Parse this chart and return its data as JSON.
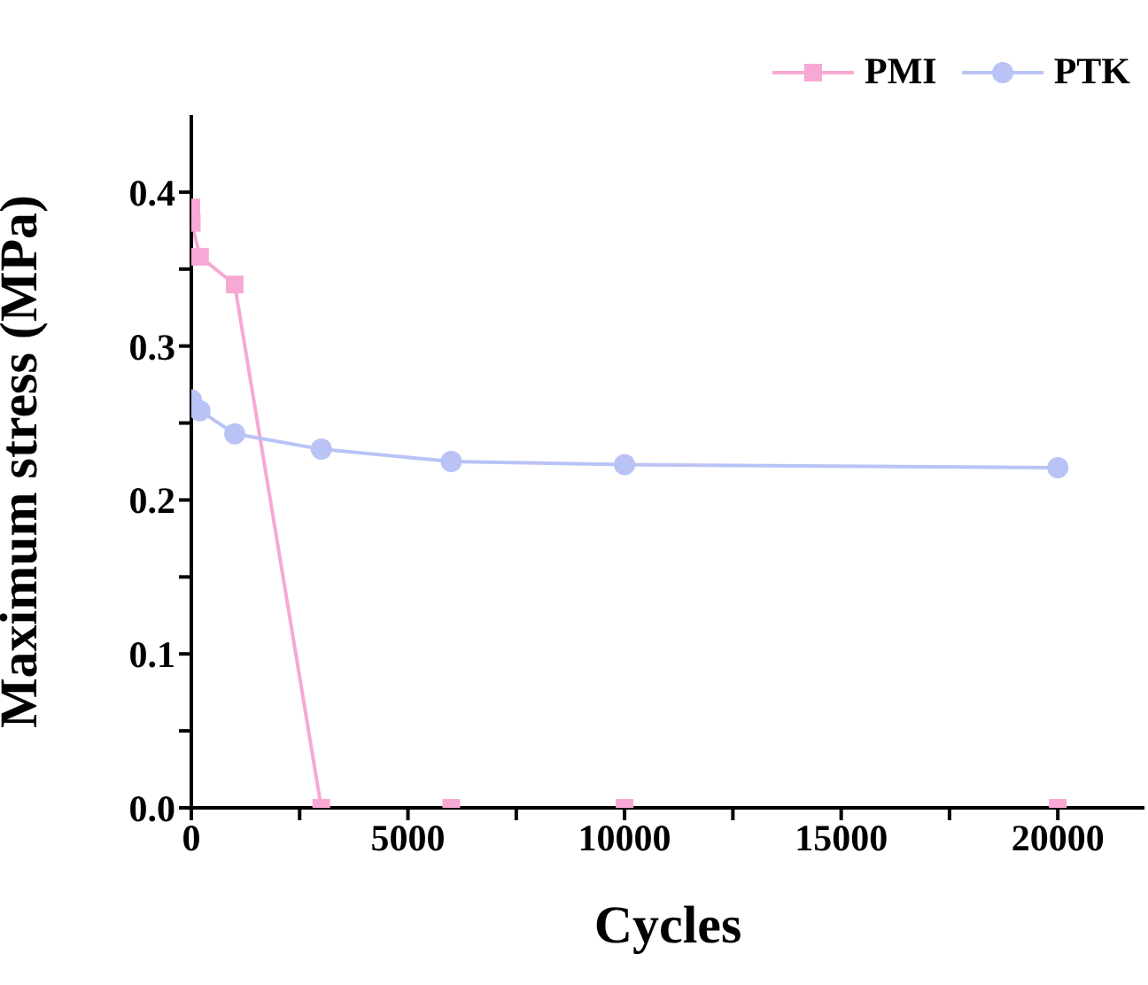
{
  "chart_data": {
    "type": "line",
    "xlabel": "Cycles",
    "ylabel": "Maximum stress (MPa)",
    "xlim": [
      0,
      22000
    ],
    "xticks": [
      0,
      {
        "value": 2500,
        "label": null
      },
      5000,
      {
        "value": 7500,
        "label": null
      },
      10000,
      {
        "value": 12500,
        "label": null
      },
      15000,
      {
        "value": 17500,
        "label": null
      },
      20000
    ],
    "ylim": [
      0,
      0.45
    ],
    "yticks": [
      {
        "value": 0,
        "label": "0.0"
      },
      {
        "value": 0.05,
        "label": null
      },
      0.1,
      {
        "value": 0.15,
        "label": null
      },
      0.2,
      {
        "value": 0.25,
        "label": null
      },
      0.3,
      {
        "value": 0.35,
        "label": null
      },
      0.4
    ],
    "legend": "top right",
    "grid": false,
    "series": [
      {
        "name": "PMI",
        "color": "#f7a8d4",
        "marker": "square",
        "x": [
          0,
          10,
          200,
          1000,
          3000,
          6000,
          10000,
          20000
        ],
        "values": [
          0.39,
          0.38,
          0.358,
          0.34,
          0,
          0,
          0,
          0
        ]
      },
      {
        "name": "PTK",
        "color": "#b9c3f6",
        "marker": "circle",
        "x": [
          0,
          200,
          1000,
          3000,
          6000,
          10000,
          20000
        ],
        "values": [
          0.265,
          0.258,
          0.243,
          0.233,
          0.225,
          0.223,
          0.221
        ]
      }
    ]
  }
}
